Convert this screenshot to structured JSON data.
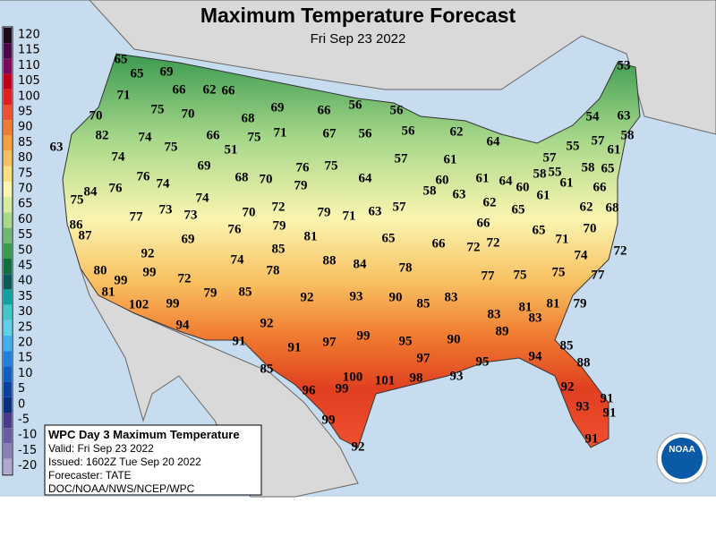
{
  "title": "Maximum Temperature Forecast",
  "subtitle": "Fri Sep 23 2022",
  "legend": {
    "ticks": [
      120,
      115,
      110,
      105,
      100,
      95,
      90,
      85,
      80,
      75,
      70,
      65,
      60,
      55,
      50,
      45,
      40,
      35,
      30,
      25,
      20,
      15,
      10,
      5,
      0,
      -5,
      -10,
      -15,
      -20
    ],
    "colors": [
      "#1a0a1a",
      "#4a0a4a",
      "#7a0a5a",
      "#c0001a",
      "#e02020",
      "#f05030",
      "#f07a30",
      "#f5a040",
      "#f8c060",
      "#fbe080",
      "#fbf5b0",
      "#d8eca0",
      "#a8d88a",
      "#70b870",
      "#3a9a50",
      "#107040",
      "#0a5a5a",
      "#10a0a0",
      "#40c8c8",
      "#60d0e8",
      "#40b0f0",
      "#2080e0",
      "#1060c0",
      "#0a40a0",
      "#083080",
      "#4a3a8a",
      "#6a5aa0",
      "#8a80b8",
      "#b0a8d0"
    ]
  },
  "labels": [
    65,
    65,
    69,
    66,
    62,
    66,
    71,
    75,
    70,
    69,
    70,
    68,
    66,
    56,
    56,
    82,
    74,
    75,
    66,
    51,
    75,
    71,
    67,
    56,
    56,
    62,
    63,
    74,
    69,
    76,
    75,
    57,
    61,
    64,
    57,
    55,
    57,
    54,
    63,
    58,
    53,
    61,
    58,
    65,
    58,
    55,
    60,
    61,
    61,
    66,
    76,
    74,
    68,
    70,
    79,
    64,
    58,
    60,
    63,
    61,
    64,
    84,
    75,
    76,
    74,
    72,
    62,
    65,
    62,
    68,
    77,
    73,
    73,
    70,
    79,
    71,
    63,
    57,
    66,
    86,
    76,
    79,
    81,
    65,
    66,
    72,
    72,
    65,
    71,
    70,
    87,
    69,
    85,
    72,
    74,
    92,
    88,
    84,
    74,
    78,
    80,
    99,
    72,
    78,
    77,
    75,
    75,
    77,
    99,
    81,
    85,
    92,
    93,
    90,
    85,
    83,
    81,
    83,
    79,
    81,
    102,
    99,
    79,
    83,
    94,
    92,
    89,
    97,
    99,
    95,
    90,
    91,
    91,
    85,
    97,
    95,
    94,
    85,
    88,
    100,
    101,
    98,
    93,
    96,
    99,
    92,
    91,
    93,
    91,
    99,
    91,
    92
  ],
  "info": {
    "heading": "WPC Day 3 Maximum Temperature",
    "lines": [
      "Valid: Fri Sep 23 2022",
      "Issued: 1602Z Tue Sep 20 2022",
      "Forecaster: TATE",
      "DOC/NOAA/NWS/NCEP/WPC"
    ]
  },
  "logo": "NOAA"
}
